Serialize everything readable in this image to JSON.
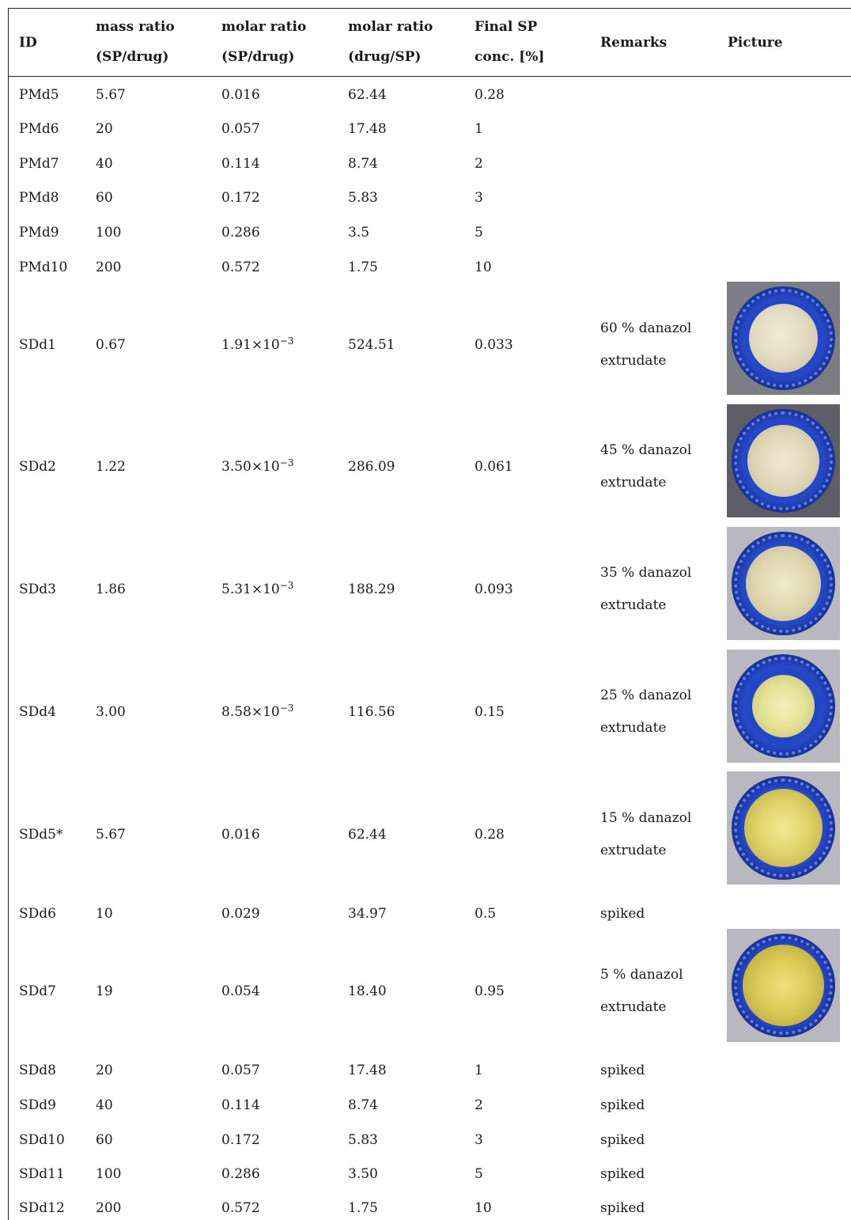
{
  "table": {
    "headers": {
      "id": "ID",
      "mass_ratio_l1": "mass ratio",
      "mass_ratio_l2": "(SP/drug)",
      "molar_sp_l1": "molar ratio",
      "molar_sp_l2": "(SP/drug)",
      "molar_drug_l1": "molar ratio",
      "molar_drug_l2": "(drug/SP)",
      "final_l1": "Final SP",
      "final_l2": "conc. [%]",
      "remarks": "Remarks",
      "picture": "Picture"
    },
    "rows": [
      {
        "id": "PMd5",
        "mass": "5.67",
        "molar_sp": "0.016",
        "molar_drug": "62.44",
        "final": "0.28"
      },
      {
        "id": "PMd6",
        "mass": "20",
        "molar_sp": "0.057",
        "molar_drug": "17.48",
        "final": "1"
      },
      {
        "id": "PMd7",
        "mass": "40",
        "molar_sp": "0.114",
        "molar_drug": "8.74",
        "final": "2"
      },
      {
        "id": "PMd8",
        "mass": "60",
        "molar_sp": "0.172",
        "molar_drug": "5.83",
        "final": "3"
      },
      {
        "id": "PMd9",
        "mass": "100",
        "molar_sp": "0.286",
        "molar_drug": "3.5",
        "final": "5"
      },
      {
        "id": "PMd10",
        "mass": "200",
        "molar_sp": "0.572",
        "molar_drug": "1.75",
        "final": "10"
      },
      {
        "id": "SDd1",
        "mass": "0.67",
        "molar_sp_base": "1.91×10",
        "molar_sp_exp": "−3",
        "molar_drug": "524.51",
        "final": "0.033",
        "remark_l1": "60 % danazol",
        "remark_l2": "extrudate",
        "picture": "extrudate-cap-photo"
      },
      {
        "id": "SDd2",
        "mass": "1.22",
        "molar_sp_base": "3.50×10",
        "molar_sp_exp": "−3",
        "molar_drug": "286.09",
        "final": "0.061",
        "remark_l1": "45 % danazol",
        "remark_l2": "extrudate",
        "picture": "extrudate-cap-photo"
      },
      {
        "id": "SDd3",
        "mass": "1.86",
        "molar_sp_base": "5.31×10",
        "molar_sp_exp": "−3",
        "molar_drug": "188.29",
        "final": "0.093",
        "remark_l1": "35 % danazol",
        "remark_l2": "extrudate",
        "picture": "extrudate-cap-photo"
      },
      {
        "id": "SDd4",
        "mass": "3.00",
        "molar_sp_base": "8.58×10",
        "molar_sp_exp": "−3",
        "molar_drug": "116.56",
        "final": "0.15",
        "remark_l1": "25 % danazol",
        "remark_l2": "extrudate",
        "picture": "extrudate-cap-photo"
      },
      {
        "id": "SDd5*",
        "mass": "5.67",
        "molar_sp": "0.016",
        "molar_drug": "62.44",
        "final": "0.28",
        "remark_l1": "15 % danazol",
        "remark_l2": "extrudate",
        "picture": "extrudate-cap-photo"
      },
      {
        "id": "SDd6",
        "mass": "10",
        "molar_sp": "0.029",
        "molar_drug": "34.97",
        "final": "0.5",
        "remark": "spiked"
      },
      {
        "id": "SDd7",
        "mass": "19",
        "molar_sp": "0.054",
        "molar_drug": "18.40",
        "final": "0.95",
        "remark_l1": "5 % danazol",
        "remark_l2": "extrudate",
        "picture": "extrudate-cap-photo"
      },
      {
        "id": "SDd8",
        "mass": "20",
        "molar_sp": "0.057",
        "molar_drug": "17.48",
        "final": "1",
        "remark": "spiked"
      },
      {
        "id": "SDd9",
        "mass": "40",
        "molar_sp": "0.114",
        "molar_drug": "8.74",
        "final": "2",
        "remark": "spiked"
      },
      {
        "id": "SDd10",
        "mass": "60",
        "molar_sp": "0.172",
        "molar_drug": "5.83",
        "final": "3",
        "remark": "spiked"
      },
      {
        "id": "SDd11",
        "mass": "100",
        "molar_sp": "0.286",
        "molar_drug": "3.50",
        "final": "5",
        "remark": "spiked"
      },
      {
        "id": "SDd12",
        "mass": "200",
        "molar_sp": "0.572",
        "molar_drug": "1.75",
        "final": "10",
        "remark": "spiked"
      }
    ]
  }
}
